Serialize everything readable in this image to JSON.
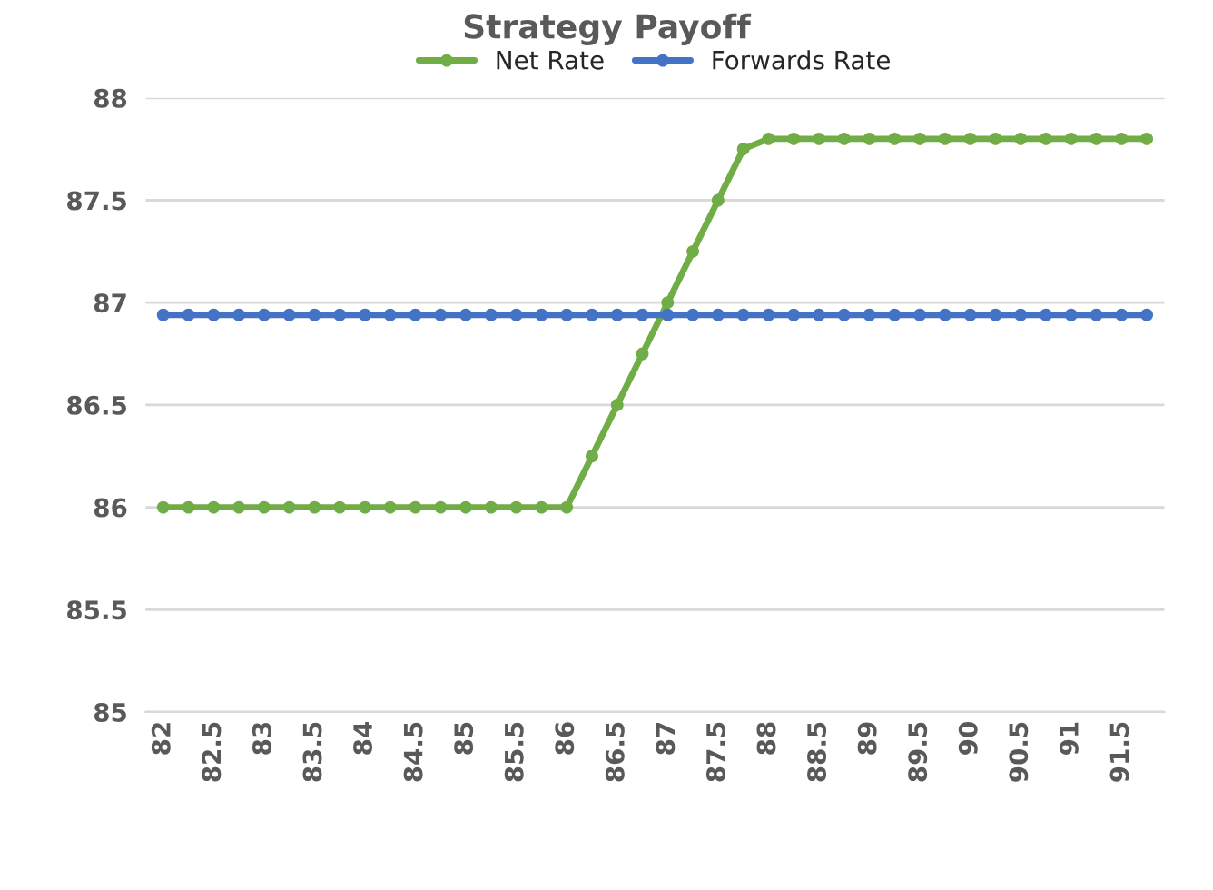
{
  "chart_data": {
    "type": "line",
    "title": "Strategy Payoff",
    "categories": [
      "82",
      null,
      "82.5",
      null,
      "83",
      null,
      "83.5",
      null,
      "84",
      null,
      "84.5",
      null,
      "85",
      null,
      "85.5",
      null,
      "86",
      null,
      "86.5",
      null,
      "87",
      null,
      "87.5",
      null,
      "88",
      null,
      "88.5",
      null,
      "89",
      null,
      "89.5",
      null,
      "90",
      null,
      "90.5",
      null,
      "91",
      null,
      "91.5",
      null
    ],
    "series": [
      {
        "name": "Net Rate",
        "color": "#70ad47",
        "values": [
          86,
          86,
          86,
          86,
          86,
          86,
          86,
          86,
          86,
          86,
          86,
          86,
          86,
          86,
          86,
          86,
          86,
          86.25,
          86.5,
          86.75,
          87,
          87.25,
          87.5,
          87.75,
          87.8,
          87.8,
          87.8,
          87.8,
          87.8,
          87.8,
          87.8,
          87.8,
          87.8,
          87.8,
          87.8,
          87.8,
          87.8,
          87.8,
          87.8,
          87.8
        ]
      },
      {
        "name": "Forwards Rate",
        "color": "#4472c4",
        "values": [
          86.94,
          86.94,
          86.94,
          86.94,
          86.94,
          86.94,
          86.94,
          86.94,
          86.94,
          86.94,
          86.94,
          86.94,
          86.94,
          86.94,
          86.94,
          86.94,
          86.94,
          86.94,
          86.94,
          86.94,
          86.94,
          86.94,
          86.94,
          86.94,
          86.94,
          86.94,
          86.94,
          86.94,
          86.94,
          86.94,
          86.94,
          86.94,
          86.94,
          86.94,
          86.94,
          86.94,
          86.94,
          86.94,
          86.94,
          86.94
        ]
      }
    ],
    "ylim": [
      85,
      88
    ],
    "yticks": [
      85,
      85.5,
      86,
      86.5,
      87,
      87.5,
      88
    ],
    "grid": "y",
    "legend": "top",
    "marker": "circle",
    "line_style": "solid"
  }
}
